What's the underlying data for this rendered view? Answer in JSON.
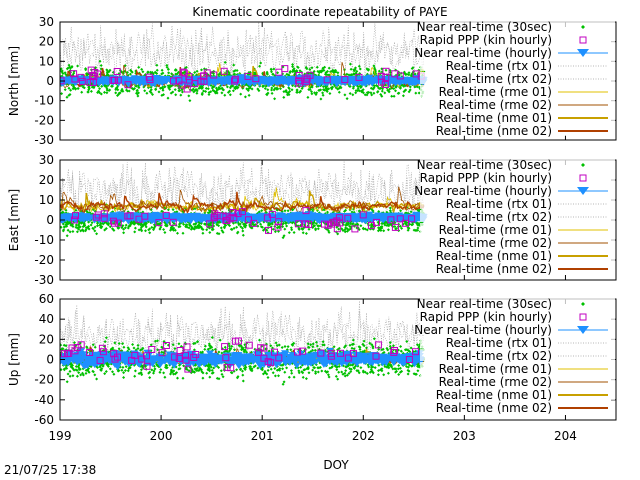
{
  "title": "Kinematic coordinate repeatability of PAYE",
  "xlabel": "DOY",
  "timestamp": "21/07/25 17:38",
  "colors": {
    "nrt30": "#00c000",
    "rapid_ppp": "#c000c0",
    "nrt_hourly": "#1e90ff",
    "rtx": "#a0a0a0",
    "rme01": "#e0c000",
    "rme02": "#a05000",
    "nme01": "#c8a000",
    "nme02": "#b04000"
  },
  "legend": [
    {
      "label": "Near real-time (30sec)",
      "key": "nrt30",
      "style": "dot"
    },
    {
      "label": "Rapid PPP (kin hourly)",
      "key": "rapid_ppp",
      "style": "square"
    },
    {
      "label": "Near real-time (hourly)",
      "key": "nrt_hourly",
      "style": "triangle"
    },
    {
      "label": "Real-time (rtx 01)",
      "key": "rtx",
      "style": "dotted"
    },
    {
      "label": "Real-time (rtx 02)",
      "key": "rtx",
      "style": "dotted"
    },
    {
      "label": "Real-time (rme 01)",
      "key": "rme01",
      "style": "thin"
    },
    {
      "label": "Real-time (rme 02)",
      "key": "rme02",
      "style": "thin"
    },
    {
      "label": "Real-time (nme 01)",
      "key": "nme01",
      "style": "thick"
    },
    {
      "label": "Real-time (nme 02)",
      "key": "nme02",
      "style": "thick"
    }
  ],
  "chart_data": [
    {
      "type": "scatter",
      "ylabel": "North [mm]",
      "xlim": [
        199,
        204.5
      ],
      "ylim": [
        -30,
        30
      ],
      "xticks": [
        199,
        200,
        201,
        202,
        203,
        204
      ],
      "yticks": [
        -30,
        -20,
        -10,
        0,
        10,
        20,
        30
      ],
      "data_x_range": [
        199,
        202.6
      ],
      "series": [
        {
          "key": "nrt30",
          "center": 0,
          "spread": 6
        },
        {
          "key": "nrt_hourly",
          "center": 0,
          "spread": 2
        },
        {
          "key": "rtx",
          "center": 15,
          "spread": 10
        },
        {
          "key": "rme02",
          "center": 0,
          "spread": 3
        },
        {
          "key": "rapid_ppp",
          "center": 2,
          "spread": 4
        }
      ]
    },
    {
      "type": "scatter",
      "ylabel": "East [mm]",
      "xlim": [
        199,
        204.5
      ],
      "ylim": [
        -30,
        30
      ],
      "xticks": [
        199,
        200,
        201,
        202,
        203,
        204
      ],
      "yticks": [
        -30,
        -20,
        -10,
        0,
        10,
        20,
        30
      ],
      "data_x_range": [
        199,
        202.6
      ],
      "series": [
        {
          "key": "nrt30",
          "center": 0,
          "spread": 5
        },
        {
          "key": "nrt_hourly",
          "center": 1,
          "spread": 2
        },
        {
          "key": "rtx",
          "center": 15,
          "spread": 10
        },
        {
          "key": "rme02",
          "center": 7,
          "spread": 3
        },
        {
          "key": "rapid_ppp",
          "center": 0,
          "spread": 4
        }
      ]
    },
    {
      "type": "scatter",
      "ylabel": "Up [mm]",
      "xlim": [
        199,
        204.5
      ],
      "ylim": [
        -60,
        60
      ],
      "xticks": [
        199,
        200,
        201,
        202,
        203,
        204
      ],
      "yticks": [
        -60,
        -40,
        -20,
        0,
        20,
        40,
        60
      ],
      "data_x_range": [
        199,
        202.6
      ],
      "series": [
        {
          "key": "nrt30",
          "center": 0,
          "spread": 14
        },
        {
          "key": "nrt_hourly",
          "center": 0,
          "spread": 4
        },
        {
          "key": "rtx",
          "center": 25,
          "spread": 20
        },
        {
          "key": "rme02",
          "center": 0,
          "spread": 4
        },
        {
          "key": "rapid_ppp",
          "center": 5,
          "spread": 10
        }
      ]
    }
  ]
}
